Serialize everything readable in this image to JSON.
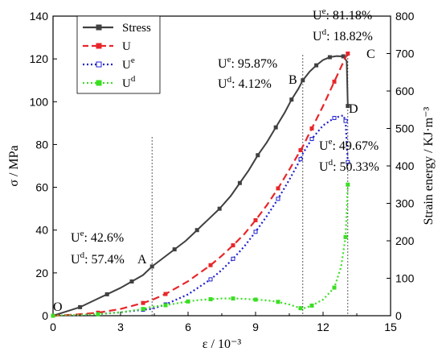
{
  "chart_data": {
    "type": "line",
    "xlabel": "ε / 10⁻³",
    "ylabel_left": "σ / MPa",
    "ylabel_right": "Strain energy / KJ·m⁻³",
    "xlim": [
      0,
      15
    ],
    "ylim_left": [
      0,
      140
    ],
    "ylim_right": [
      0,
      800
    ],
    "x_ticks": [
      0,
      3,
      6,
      9,
      12,
      15
    ],
    "y_ticks_left": [
      0,
      20,
      40,
      60,
      80,
      100,
      120,
      140
    ],
    "y_ticks_right": [
      0,
      100,
      200,
      300,
      400,
      500,
      600,
      700,
      800
    ],
    "grid": false,
    "legend_position": "top-left",
    "vlines": [
      4.4,
      11.1,
      13.1
    ],
    "colors": {
      "stress": "#404040",
      "U": "#e8262a",
      "Ue": "#1f1fd0",
      "Ud": "#3ade22"
    },
    "series": [
      {
        "name": "Stress",
        "axis": "left",
        "marker": "square-filled",
        "x": [
          0,
          0.6,
          1.2,
          1.8,
          2.4,
          3.0,
          3.5,
          4.0,
          4.4,
          4.9,
          5.4,
          5.9,
          6.4,
          6.9,
          7.4,
          7.9,
          8.3,
          8.7,
          9.1,
          9.5,
          9.9,
          10.3,
          10.6,
          10.9,
          11.1,
          11.4,
          11.7,
          12.0,
          12.3,
          12.6,
          12.9,
          13.05,
          13.1
        ],
        "y": [
          0,
          2,
          4,
          7,
          10,
          13,
          16,
          19,
          23,
          27,
          31,
          35,
          40,
          45,
          50,
          56,
          62,
          68,
          75,
          81,
          88,
          95,
          101,
          106,
          110,
          114,
          117,
          119.5,
          120.8,
          121.3,
          121.2,
          119,
          98
        ]
      },
      {
        "name": "U",
        "axis": "right",
        "marker": "square-filled",
        "dashed": true,
        "x": [
          0,
          1.0,
          2.0,
          3.0,
          4.0,
          4.4,
          5.0,
          6.0,
          7.0,
          7.5,
          8.0,
          8.5,
          9.0,
          9.5,
          10.0,
          10.5,
          11.0,
          11.1,
          11.5,
          12.0,
          12.5,
          13.0,
          13.1
        ],
        "y": [
          0,
          3,
          8,
          18,
          34,
          42,
          58,
          92,
          135,
          160,
          188,
          218,
          255,
          295,
          340,
          390,
          442,
          452,
          500,
          560,
          625,
          690,
          700
        ]
      },
      {
        "name": "Ue",
        "axis": "right",
        "marker": "square-open",
        "dotted": true,
        "x": [
          0,
          1.0,
          2.0,
          3.0,
          4.0,
          4.4,
          5.0,
          6.0,
          7.0,
          7.5,
          8.0,
          8.5,
          9.0,
          9.5,
          10.0,
          10.5,
          11.0,
          11.1,
          11.5,
          12.0,
          12.5,
          12.9,
          13.0,
          13.1
        ],
        "y": [
          0,
          1,
          4,
          9,
          16,
          18,
          30,
          57,
          97,
          122,
          152,
          185,
          224,
          266,
          312,
          363,
          418,
          433,
          472,
          508,
          528,
          535,
          520,
          410
        ]
      },
      {
        "name": "Ud",
        "axis": "right",
        "marker": "square-filled",
        "dotted": true,
        "x": [
          0,
          1.0,
          2.0,
          3.0,
          4.0,
          4.4,
          5.0,
          5.5,
          6.0,
          6.5,
          7.0,
          7.5,
          8.0,
          8.5,
          9.0,
          9.5,
          10.0,
          10.5,
          11.0,
          11.1,
          11.5,
          12.0,
          12.5,
          12.8,
          13.0,
          13.1
        ],
        "y": [
          0,
          2,
          4,
          9,
          18,
          24,
          28,
          33,
          38,
          42,
          44,
          46,
          46,
          45,
          43,
          41,
          37,
          30,
          20,
          19,
          27,
          43,
          75,
          130,
          210,
          350
        ]
      }
    ],
    "annotations": [
      {
        "id": "O",
        "text": "O"
      },
      {
        "id": "A",
        "text": "A"
      },
      {
        "id": "B",
        "text": "B"
      },
      {
        "id": "C",
        "text": "C"
      },
      {
        "id": "D",
        "text": "D"
      },
      {
        "id": "A_ue",
        "sup": "e",
        "value": "42.6%"
      },
      {
        "id": "A_ud",
        "sup": "d",
        "value": "57.4%"
      },
      {
        "id": "B_ue",
        "sup": "e",
        "value": "95.87%"
      },
      {
        "id": "B_ud",
        "sup": "d",
        "value": "4.12%"
      },
      {
        "id": "C_ue",
        "sup": "e",
        "value": "81.18%"
      },
      {
        "id": "C_ud",
        "sup": "d",
        "value": "18.82%"
      },
      {
        "id": "D_ue",
        "sup": "e",
        "value": "49.67%"
      },
      {
        "id": "D_ud",
        "sup": "d",
        "value": "50.33%"
      }
    ]
  }
}
